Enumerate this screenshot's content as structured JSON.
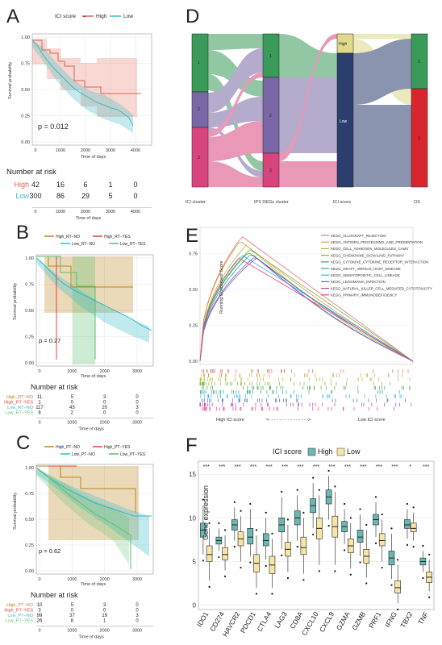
{
  "colors": {
    "high": "#E0624A",
    "low": "#3BB8C2",
    "high_rt_no": "#B8861B",
    "high_rt_yes": "#E0403A",
    "low_rt_no": "#2FB8C8",
    "low_rt_yes": "#5DBE6E",
    "sankey_green": "#3A9A5A",
    "sankey_purple": "#7A68A6",
    "sankey_pink": "#D8447E",
    "sankey_navy": "#2C3E6E",
    "sankey_yellow": "#E0D88A",
    "sankey_red": "#D8262E",
    "box_high": "#6AB8B4",
    "box_low": "#F5E6A8"
  },
  "panel_labels": [
    "A",
    "B",
    "C",
    "D",
    "E",
    "F"
  ],
  "panelA": {
    "legend_title": "ICI score",
    "legend_items": [
      "High",
      "Low"
    ],
    "ylabel": "Survival probability",
    "xlabel": "Time of days",
    "pvalue": "p = 0.012",
    "yticks": [
      "0.00",
      "0.25",
      "0.50",
      "0.75",
      "1.00"
    ],
    "xticks": [
      "0",
      "1000",
      "2000",
      "3000",
      "4000"
    ],
    "risk_title": "Number at risk",
    "risk_rows": [
      {
        "label": "High",
        "values": [
          "42",
          "16",
          "6",
          "1",
          "0"
        ]
      },
      {
        "label": "Low",
        "values": [
          "300",
          "86",
          "29",
          "5",
          "0"
        ]
      }
    ],
    "risk_xticks": [
      "0",
      "1000",
      "2000",
      "3000",
      "4000"
    ],
    "risk_xlabel": "Time of days"
  },
  "panelB": {
    "legend_items": [
      "High_RT−NO",
      "High_RT−YES",
      "Low_RT−NO",
      "Low_RT−YES"
    ],
    "ylabel": "Survival probability",
    "xlabel": "Time of days",
    "pvalue": "p = 0.27",
    "yticks": [
      "0.00",
      "0.25",
      "0.50",
      "0.75",
      "1.00"
    ],
    "xticks": [
      "0",
      "1000",
      "2000",
      "3000"
    ],
    "risk_title": "Number at risk",
    "risk_rows": [
      {
        "label": "High_RT−NO",
        "values": [
          "11",
          "5",
          "3",
          "0"
        ]
      },
      {
        "label": "High_RT−YES",
        "values": [
          "1",
          "0",
          "0",
          "0"
        ]
      },
      {
        "label": "Low_RT−NO",
        "values": [
          "117",
          "43",
          "20",
          "3"
        ]
      },
      {
        "label": "Low_RT−YES",
        "values": [
          "8",
          "2",
          "0",
          "0"
        ]
      }
    ],
    "risk_xticks": [
      "0",
      "1000",
      "2000",
      "3000"
    ],
    "risk_xlabel": "Time of days"
  },
  "panelC": {
    "legend_items": [
      "High_PT−NO",
      "High_PT−YES",
      "Low_PT−NO",
      "Low_PT−YES"
    ],
    "ylabel": "Survival probability",
    "xlabel": "Time of days",
    "pvalue": "p = 0.62",
    "yticks": [
      "0.00",
      "0.25",
      "0.50",
      "0.75",
      "1.00"
    ],
    "xticks": [
      "0",
      "1000",
      "2000",
      "3000"
    ],
    "risk_title": "Number at risk",
    "risk_rows": [
      {
        "label": "High_PT−NO",
        "values": [
          "10",
          "5",
          "3",
          "0"
        ]
      },
      {
        "label": "High_PT−YES",
        "values": [
          "3",
          "0",
          "0",
          "0"
        ]
      },
      {
        "label": "Low_PT−NO",
        "values": [
          "99",
          "37",
          "19",
          "3"
        ]
      },
      {
        "label": "Low_PT−YES",
        "values": [
          "26",
          "8",
          "1",
          "0"
        ]
      }
    ],
    "risk_xticks": [
      "0",
      "1000",
      "2000",
      "3000"
    ],
    "risk_xlabel": "Time of days"
  },
  "panelD": {
    "axis_labels": [
      "ICI cluster",
      "IPS DEGs cluster",
      "ICI score",
      "OS"
    ],
    "col1": [
      "1",
      "2",
      "3"
    ],
    "col2": [
      "1",
      "2",
      "3"
    ],
    "col3": [
      "High",
      "Low"
    ],
    "col4": [
      "1",
      "0"
    ]
  },
  "panelE": {
    "ylabel": "Running Enrichment Score",
    "yticks": [
      "0.00",
      "0.25",
      "0.50",
      "0.75"
    ],
    "bottom_left": "High ICI score",
    "bottom_arrows": "<- - - - - - - - - - - - - - ->",
    "bottom_right": "Low ICI score",
    "pathways": [
      {
        "name": "KEGG_ALLOGRAFT_REJECTION",
        "color": "#E57373"
      },
      {
        "name": "KEGG_ANTIGEN_PROCESSING_AND_PRESENTATION",
        "color": "#D4A03A"
      },
      {
        "name": "KEGG_CELL_ADHESION_MOLECULES_CAMS",
        "color": "#B8B83A"
      },
      {
        "name": "KEGG_CHEMOKINE_SIGNALING_PATHWAY",
        "color": "#7CB342"
      },
      {
        "name": "KEGG_CYTOKINE_CYTOKINE_RECEPTOR_INTERACTION",
        "color": "#43A047"
      },
      {
        "name": "KEGG_GRAFT_VERSUS_HOST_DISEASE",
        "color": "#26A69A"
      },
      {
        "name": "KEGG_HEMATOPOIETIC_CELL_LINEAGE",
        "color": "#29B6F6"
      },
      {
        "name": "KEGG_LEISHMANIA_INFECTION",
        "color": "#5C6BC0"
      },
      {
        "name": "KEGG_NATURAL_KILLER_CELL_MEDIATED_CYTOTOXICITY",
        "color": "#AB47BC"
      },
      {
        "name": "KEGG_PRIMARY_IMMUNODEFICIENCY",
        "color": "#EC407A"
      }
    ]
  },
  "panelF": {
    "legend_title": "ICI score",
    "legend_items": [
      "High",
      "Low"
    ],
    "ylabel": "Gene expression",
    "yticks": [
      "0",
      "5",
      "10",
      "15"
    ],
    "ylim": [
      -0.5,
      16.5
    ],
    "genes": [
      "IDO1",
      "CD274",
      "HAVCR2",
      "PDCD1",
      "CTLA4",
      "LAG3",
      "CD8A",
      "CXCL10",
      "CXCL9",
      "GZMA",
      "GZMB",
      "PRF1",
      "IFNG",
      "TBX2",
      "TNF"
    ],
    "significance": [
      "***",
      "***",
      "***",
      "***",
      "***",
      "***",
      "***",
      "***",
      "***",
      "***",
      "***",
      "***",
      "***",
      "*",
      "***"
    ],
    "high": [
      {
        "q1": 7.8,
        "med": 8.6,
        "q3": 9.4,
        "lo": 5.8,
        "hi": 11.5
      },
      {
        "q1": 7.0,
        "med": 7.4,
        "q3": 7.8,
        "lo": 6.2,
        "hi": 8.8
      },
      {
        "q1": 8.6,
        "med": 9.2,
        "q3": 9.8,
        "lo": 7.4,
        "hi": 11.2
      },
      {
        "q1": 7.0,
        "med": 7.8,
        "q3": 8.8,
        "lo": 5.6,
        "hi": 11.0
      },
      {
        "q1": 6.8,
        "med": 7.4,
        "q3": 8.2,
        "lo": 5.2,
        "hi": 10.0
      },
      {
        "q1": 8.4,
        "med": 9.2,
        "q3": 10.0,
        "lo": 6.4,
        "hi": 12.4
      },
      {
        "q1": 9.2,
        "med": 10.0,
        "q3": 10.8,
        "lo": 7.4,
        "hi": 12.6
      },
      {
        "q1": 10.6,
        "med": 11.4,
        "q3": 12.2,
        "lo": 8.8,
        "hi": 14.0
      },
      {
        "q1": 11.6,
        "med": 12.4,
        "q3": 13.2,
        "lo": 9.8,
        "hi": 14.8
      },
      {
        "q1": 8.4,
        "med": 9.0,
        "q3": 9.6,
        "lo": 7.0,
        "hi": 11.0
      },
      {
        "q1": 7.2,
        "med": 7.8,
        "q3": 8.6,
        "lo": 5.6,
        "hi": 10.4
      },
      {
        "q1": 9.2,
        "med": 9.8,
        "q3": 10.4,
        "lo": 7.8,
        "hi": 11.8
      },
      {
        "q1": 4.6,
        "med": 5.4,
        "q3": 6.2,
        "lo": 3.0,
        "hi": 8.2
      },
      {
        "q1": 8.8,
        "med": 9.2,
        "q3": 9.8,
        "lo": 7.6,
        "hi": 11.0
      },
      {
        "q1": 4.6,
        "med": 5.0,
        "q3": 5.4,
        "lo": 3.8,
        "hi": 6.2
      }
    ],
    "low": [
      {
        "q1": 5.0,
        "med": 5.8,
        "q3": 6.8,
        "lo": 2.8,
        "hi": 8.8
      },
      {
        "q1": 5.2,
        "med": 5.8,
        "q3": 6.6,
        "lo": 4.0,
        "hi": 8.0
      },
      {
        "q1": 6.8,
        "med": 7.6,
        "q3": 8.4,
        "lo": 5.0,
        "hi": 10.2
      },
      {
        "q1": 3.8,
        "med": 4.8,
        "q3": 5.8,
        "lo": 2.0,
        "hi": 8.0
      },
      {
        "q1": 3.6,
        "med": 4.6,
        "q3": 5.6,
        "lo": 2.0,
        "hi": 7.6
      },
      {
        "q1": 5.6,
        "med": 6.4,
        "q3": 7.2,
        "lo": 3.8,
        "hi": 9.2
      },
      {
        "q1": 5.8,
        "med": 6.6,
        "q3": 7.8,
        "lo": 3.6,
        "hi": 10.0
      },
      {
        "q1": 7.6,
        "med": 8.8,
        "q3": 10.0,
        "lo": 4.6,
        "hi": 12.6
      },
      {
        "q1": 7.8,
        "med": 9.0,
        "q3": 10.2,
        "lo": 4.6,
        "hi": 13.0
      },
      {
        "q1": 6.0,
        "med": 6.8,
        "q3": 7.6,
        "lo": 4.2,
        "hi": 9.4
      },
      {
        "q1": 4.8,
        "med": 5.6,
        "q3": 6.4,
        "lo": 3.2,
        "hi": 8.6
      },
      {
        "q1": 6.8,
        "med": 7.4,
        "q3": 8.2,
        "lo": 5.0,
        "hi": 9.8
      },
      {
        "q1": 1.4,
        "med": 2.0,
        "q3": 2.8,
        "lo": 0.2,
        "hi": 4.6
      },
      {
        "q1": 8.4,
        "med": 8.8,
        "q3": 9.4,
        "lo": 7.4,
        "hi": 10.6
      },
      {
        "q1": 2.6,
        "med": 3.2,
        "q3": 3.8,
        "lo": 1.6,
        "hi": 5.2
      }
    ]
  }
}
